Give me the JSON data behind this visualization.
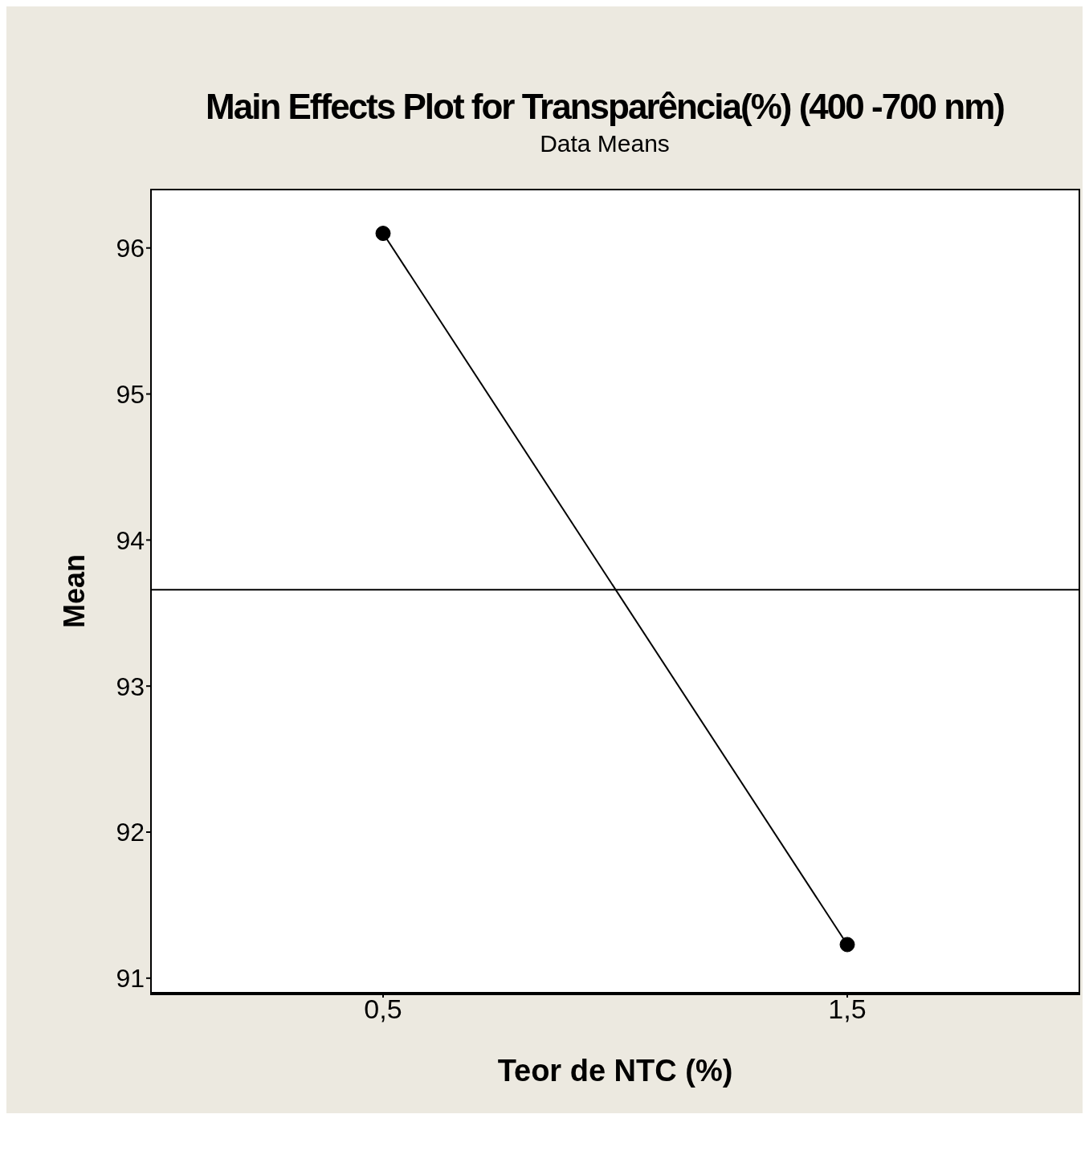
{
  "chart_data": {
    "type": "line",
    "title": "Main Effects Plot for Transparência(%) (400 -700 nm)",
    "subtitle": "Data Means",
    "xlabel": "Teor de NTC (%)",
    "ylabel": "Mean",
    "x": [
      0.5,
      1.5
    ],
    "xlim": [
      0,
      2
    ],
    "xticks": [
      {
        "value": 0.5,
        "label": "0,5"
      },
      {
        "value": 1.5,
        "label": "1,5"
      }
    ],
    "series": [
      {
        "color": "#000000",
        "values": [
          96.1,
          91.23
        ]
      }
    ],
    "ylim": [
      90.9,
      96.4
    ],
    "yticks": [
      91,
      92,
      93,
      94,
      95,
      96
    ],
    "ref_lines": [
      {
        "axis": "y",
        "value": 93.66,
        "color": "#000000"
      }
    ],
    "marker": "circle",
    "line_style": "solid"
  }
}
